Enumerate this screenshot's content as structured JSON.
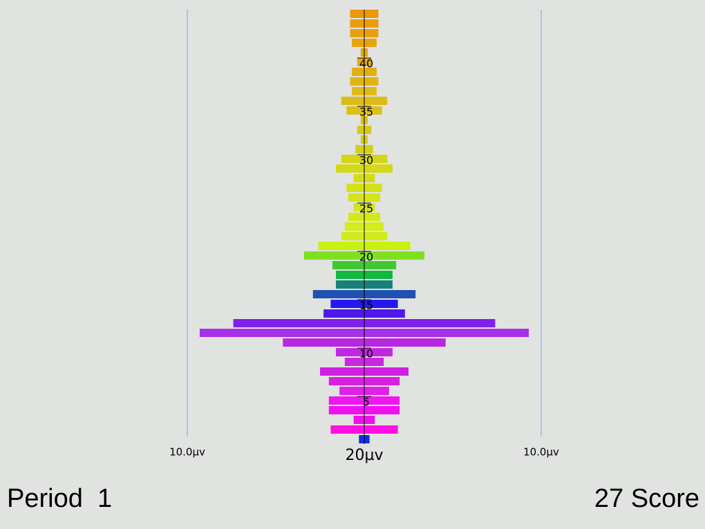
{
  "chart_data": {
    "type": "mirror-bar",
    "x_label": "20µv",
    "xlim": [
      -10,
      10
    ],
    "xticks": [
      {
        "value": -10,
        "label": "10.0µv"
      },
      {
        "value": 10,
        "label": "10.0µv"
      }
    ],
    "ylim": [
      0,
      46
    ],
    "yticks": [
      5,
      10,
      15,
      20,
      25,
      30,
      35,
      40
    ],
    "y": [
      1,
      2,
      3,
      4,
      5,
      6,
      7,
      8,
      9,
      10,
      11,
      12,
      13,
      14,
      15,
      16,
      17,
      18,
      19,
      20,
      21,
      22,
      23,
      24,
      25,
      26,
      27,
      28,
      29,
      30,
      31,
      32,
      33,
      34,
      35,
      36,
      37,
      38,
      39,
      40,
      41,
      42,
      43,
      44,
      45
    ],
    "values": [
      0.3,
      1.9,
      0.6,
      2.0,
      2.0,
      1.4,
      2.0,
      2.5,
      1.1,
      1.6,
      4.6,
      9.3,
      7.4,
      2.3,
      1.9,
      2.9,
      1.6,
      1.6,
      1.8,
      3.4,
      2.6,
      1.3,
      1.1,
      0.9,
      0.6,
      0.9,
      1.0,
      0.6,
      1.6,
      1.3,
      0.5,
      0.2,
      0.4,
      0.2,
      1.0,
      1.3,
      0.7,
      0.8,
      0.7,
      0.4,
      0.2,
      0.7,
      0.8,
      0.8,
      0.8
    ],
    "colors": [
      "#1030e0",
      "#ff10e0",
      "#f010e8",
      "#f010f0",
      "#ee18ee",
      "#e020e8",
      "#d820e0",
      "#d020e0",
      "#c828e0",
      "#c028e0",
      "#b828e0",
      "#a830e8",
      "#8020e8",
      "#5018e8",
      "#2818f0",
      "#2050b0",
      "#18807a",
      "#10b840",
      "#40c830",
      "#80e020",
      "#c8f010",
      "#d0ec18",
      "#d4ec18",
      "#d4e818",
      "#d4e418",
      "#d4e418",
      "#d4e018",
      "#d4dc18",
      "#d4d818",
      "#d4d418",
      "#d4d018",
      "#d4cc18",
      "#d8c818",
      "#d8c418",
      "#dcc018",
      "#dcbc18",
      "#e0b818",
      "#e0b410",
      "#e0b010",
      "#e4ac10",
      "#e4a810",
      "#e8a410",
      "#e8a010",
      "#ec9c08",
      "#ec9808"
    ],
    "grid_color": "#7c9cf0"
  },
  "footer": {
    "left": "Period  1",
    "right": "27 Score"
  }
}
